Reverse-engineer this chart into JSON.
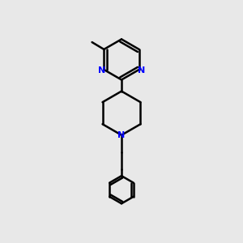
{
  "background_color": "#e8e8e8",
  "bond_color": "#000000",
  "nitrogen_color": "#0000ff",
  "line_width": 1.8,
  "fig_size": [
    3.0,
    3.0
  ],
  "dpi": 100,
  "xlim": [
    0,
    10
  ],
  "ylim": [
    0,
    10
  ]
}
